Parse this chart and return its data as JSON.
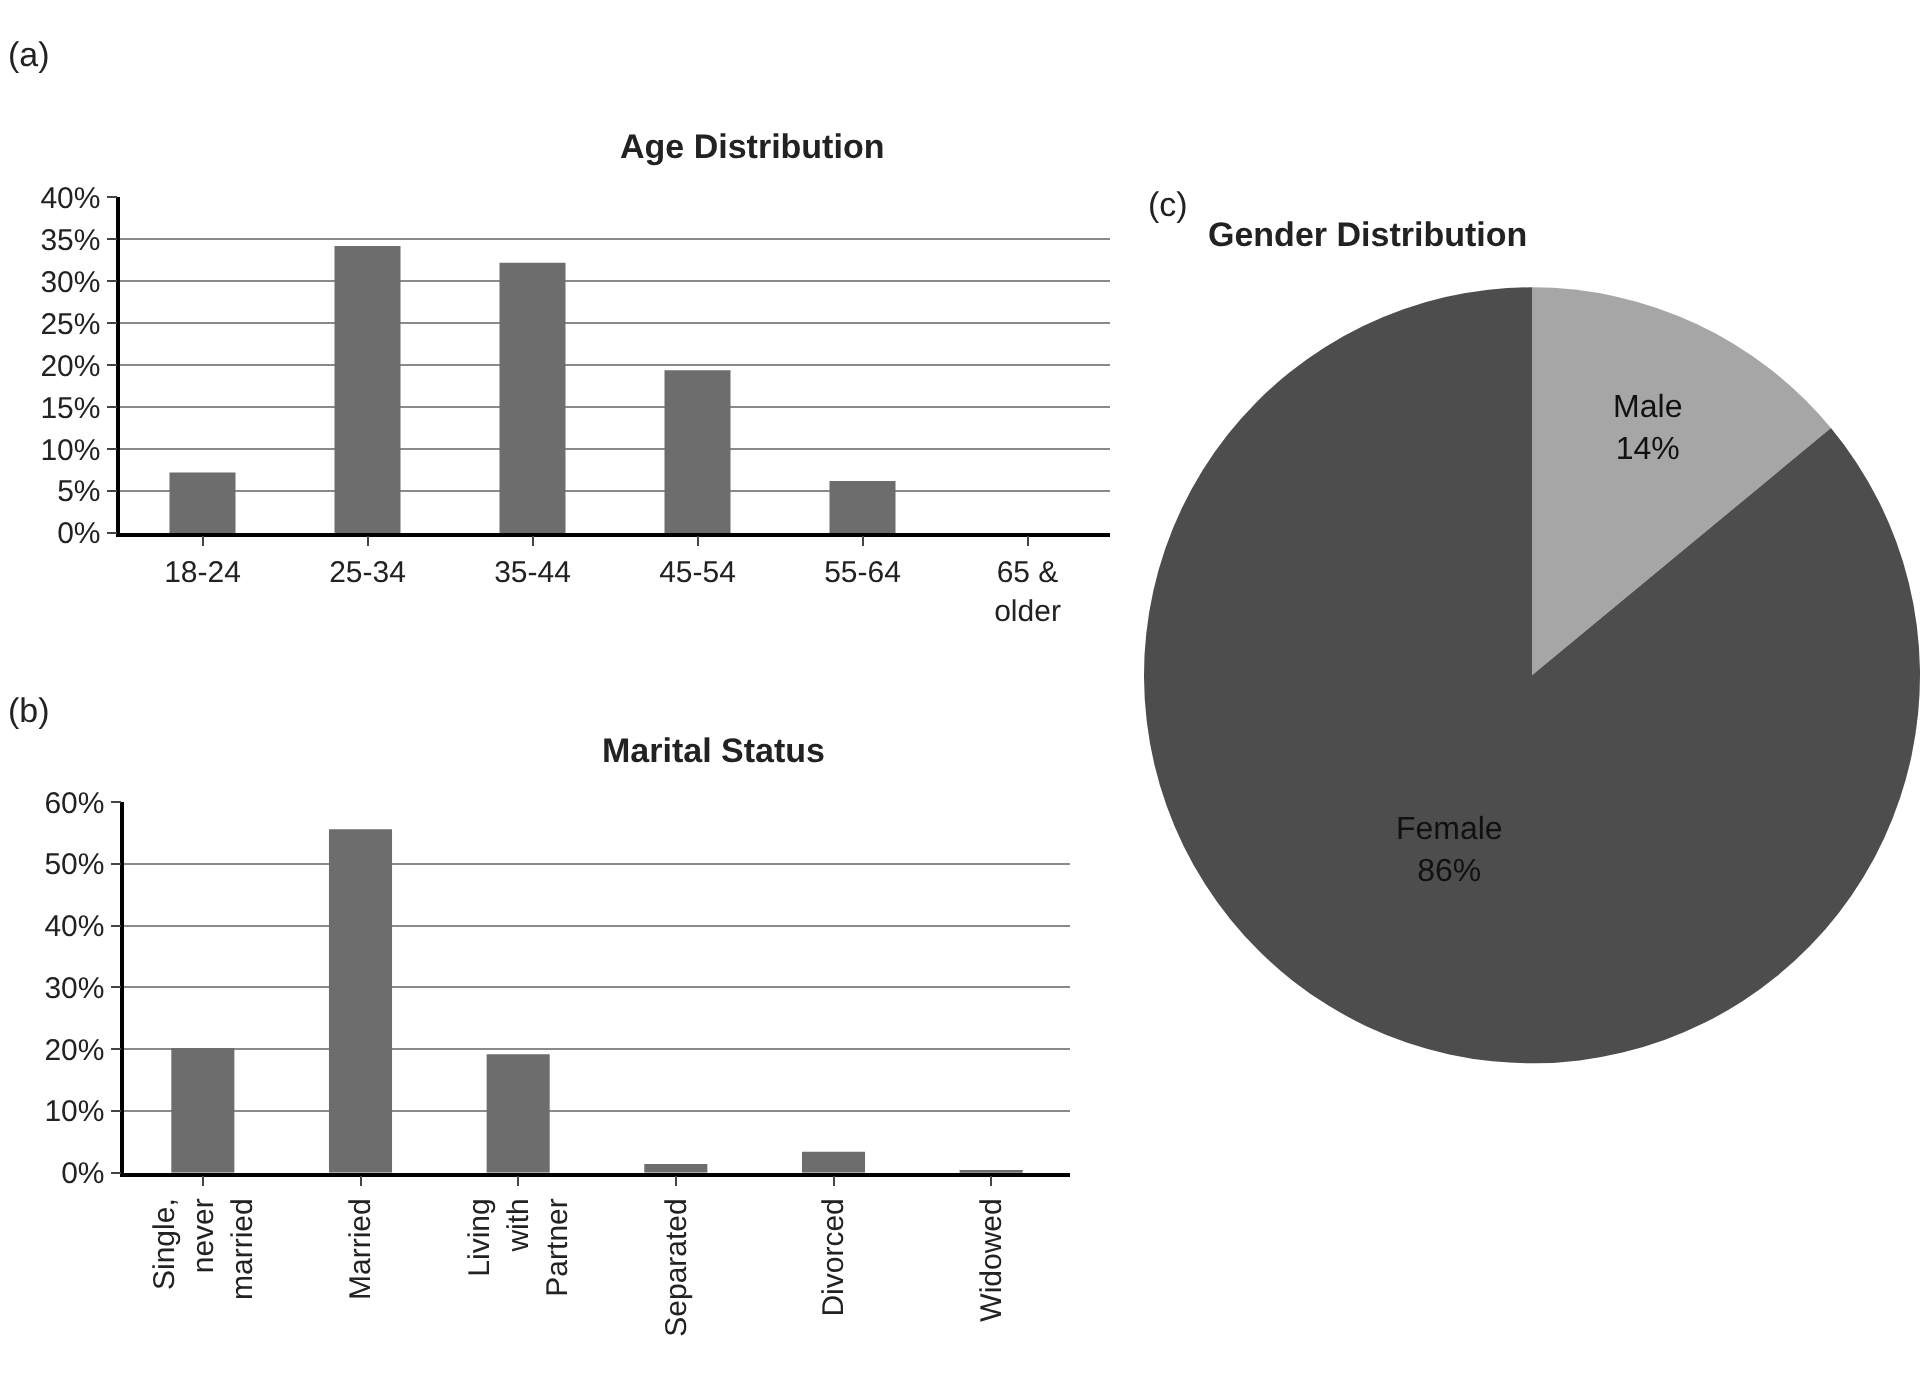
{
  "chart_data": [
    {
      "type": "bar",
      "title": "Age Distribution",
      "annotations": [
        "(a)"
      ],
      "categories": [
        "18-24",
        "25-34",
        "35-44",
        "45-54",
        "55-64",
        "65 & older"
      ],
      "values": [
        7.2,
        34.2,
        32.2,
        19.4,
        6.2,
        0
      ],
      "color": "#6d6d6d",
      "ylim": [
        0,
        40
      ],
      "yticks": [
        {
          "value": 0,
          "label": "0%"
        },
        {
          "value": 5,
          "label": "5%"
        },
        {
          "value": 10,
          "label": "10%"
        },
        {
          "value": 15,
          "label": "15%"
        },
        {
          "value": 20,
          "label": "20%"
        },
        {
          "value": 25,
          "label": "25%"
        },
        {
          "value": 30,
          "label": "30%"
        },
        {
          "value": 35,
          "label": "35%"
        },
        {
          "value": 40,
          "label": "40%"
        }
      ],
      "grid": "y",
      "legend": false
    },
    {
      "type": "bar",
      "title": "Marital Status",
      "annotations": [
        "(b)"
      ],
      "categories": [
        "Single, never married",
        "Married",
        "Living with Partner",
        "Separated",
        "Divorced",
        "Widowed"
      ],
      "values": [
        20.2,
        55.6,
        19.2,
        1.4,
        3.4,
        0.4
      ],
      "color": "#6d6d6d",
      "ylim": [
        0,
        60
      ],
      "yticks": [
        {
          "value": 0,
          "label": "0%"
        },
        {
          "value": 10,
          "label": "10%"
        },
        {
          "value": 20,
          "label": "20%"
        },
        {
          "value": 30,
          "label": "30%"
        },
        {
          "value": 40,
          "label": "40%"
        },
        {
          "value": 50,
          "label": "50%"
        },
        {
          "value": 60,
          "label": "60%"
        }
      ],
      "grid": "y",
      "legend": false
    },
    {
      "type": "pie",
      "title": "Gender Distribution",
      "annotations": [
        "(c)"
      ],
      "categories": [
        "Male",
        "Female"
      ],
      "values": [
        14,
        86
      ],
      "value_labels": [
        "14%",
        "86%"
      ],
      "colors": [
        "#a6a6a6",
        "#4d4d4d"
      ],
      "legend": false
    }
  ]
}
